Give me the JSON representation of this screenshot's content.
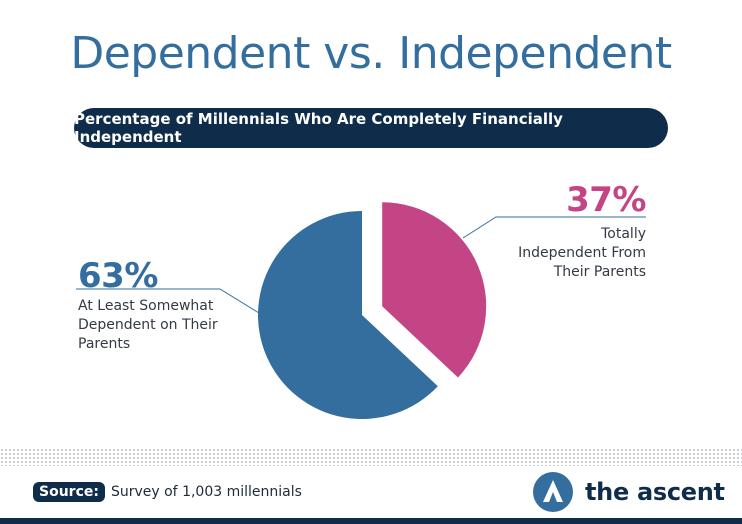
{
  "header": {
    "title": "Dependent vs. Independent",
    "subtitle": "Percentage of Millennials Who Are Completely Financially Independent"
  },
  "chart_data": {
    "type": "pie",
    "categories": [
      "At Least Somewhat Dependent on Their Parents",
      "Totally Independent From Their Parents"
    ],
    "values": [
      63,
      37
    ],
    "value_labels": [
      "63%",
      "37%"
    ],
    "exploded": [
      false,
      true
    ],
    "colors": [
      "#336e9f",
      "#c34585"
    ]
  },
  "labels": {
    "dependent": {
      "pct": "63%",
      "lines": [
        "At Least Somewhat",
        "Dependent on Their",
        "Parents"
      ]
    },
    "independent": {
      "pct": "37%",
      "lines": [
        "Totally",
        "Independent From",
        "Their Parents"
      ]
    }
  },
  "footer": {
    "source_label": "Source:",
    "source_text": "Survey of 1,003 millennials",
    "brand_name": "the ascent",
    "brand_icon": "ascent-logo-icon"
  },
  "colors": {
    "title": "#336e9f",
    "navy": "#0f2d4a",
    "blue": "#336e9f",
    "pink": "#c34585",
    "leader": "#336e9f"
  }
}
